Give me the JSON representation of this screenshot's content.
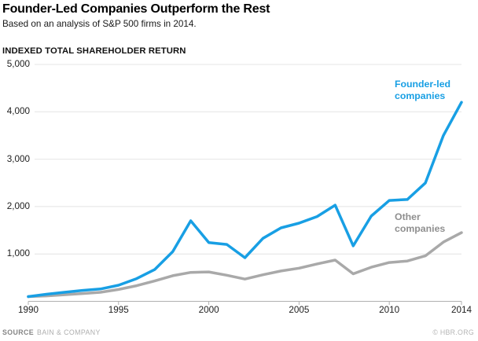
{
  "header": {
    "title": "Founder-Led Companies Outperform the Rest",
    "subtitle": "Based on an analysis of S&P 500 firms in 2014."
  },
  "axis_heading": "INDEXED TOTAL SHAREHOLDER RETURN",
  "legend": {
    "founder": "Founder-led companies",
    "other": "Other companies"
  },
  "footer": {
    "source_label": "SOURCE",
    "source_value": "BAIN & COMPANY",
    "credit": "© HBR.ORG"
  },
  "colors": {
    "founder": "#189fe4",
    "other": "#a9a9a9",
    "grid": "#e4e4e4",
    "axis": "#b0b0b0"
  },
  "chart_data": {
    "type": "line",
    "title": "Founder-Led Companies Outperform the Rest",
    "subtitle": "Based on an analysis of S&P 500 firms in 2014.",
    "ylabel": "INDEXED TOTAL SHAREHOLDER RETURN",
    "xlabel": "",
    "grid": "horizontal gridlines only",
    "legend_position": "labels annotated beside line ends",
    "ylim": [
      0,
      5000
    ],
    "xlim": [
      1990,
      2014
    ],
    "x_ticks": [
      1990,
      1995,
      2000,
      2005,
      2010,
      2014
    ],
    "y_ticks": [
      1000,
      2000,
      3000,
      4000,
      5000
    ],
    "y_tick_labels": [
      "1,000",
      "2,000",
      "3,000",
      "4,000",
      "5,000"
    ],
    "x": [
      1990,
      1991,
      1992,
      1993,
      1994,
      1995,
      1996,
      1997,
      1998,
      1999,
      2000,
      2001,
      2002,
      2003,
      2004,
      2005,
      2006,
      2007,
      2008,
      2009,
      2010,
      2011,
      2012,
      2013,
      2014
    ],
    "series": [
      {
        "name": "Founder-led companies",
        "color": "#189fe4",
        "values": [
          100,
          150,
          190,
          230,
          260,
          340,
          480,
          670,
          1050,
          1700,
          1240,
          1200,
          920,
          1330,
          1550,
          1650,
          1790,
          2030,
          1170,
          1800,
          2130,
          2150,
          2500,
          3500,
          4200
        ]
      },
      {
        "name": "Other companies",
        "color": "#a9a9a9",
        "values": [
          100,
          115,
          140,
          165,
          190,
          250,
          330,
          430,
          540,
          610,
          620,
          550,
          470,
          560,
          640,
          700,
          790,
          870,
          580,
          720,
          820,
          850,
          960,
          1250,
          1450
        ]
      }
    ]
  }
}
